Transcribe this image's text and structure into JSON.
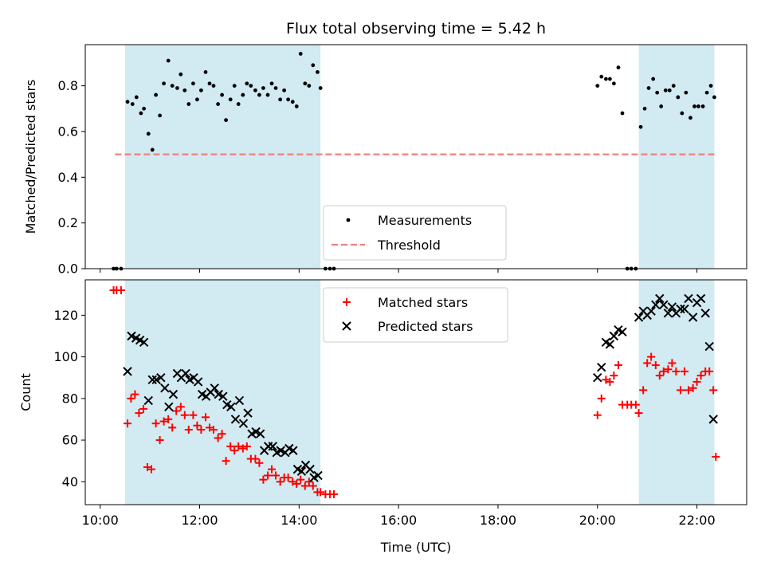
{
  "chart_data": [
    {
      "type": "scatter",
      "title": "Flux total observing time = 5.42 h",
      "xlabel": "",
      "ylabel": "Matched/Predicted stars",
      "xlim_hours": [
        9.7,
        23.0
      ],
      "ylim": [
        0,
        0.98
      ],
      "yticks": [
        0.0,
        0.2,
        0.4,
        0.6,
        0.8
      ],
      "ytick_labels": [
        "0.0",
        "0.2",
        "0.4",
        "0.6",
        "0.8"
      ],
      "grid": false,
      "legend_position": "lower-center",
      "shaded_intervals_hours": [
        [
          10.5,
          14.43
        ],
        [
          20.83,
          22.35
        ]
      ],
      "shaded_color": "#add8e6",
      "threshold": {
        "name": "Threshold",
        "value": 0.5,
        "x_range_hours": [
          10.3,
          22.35
        ],
        "color": "#f08080"
      },
      "series": [
        {
          "name": "Measurements",
          "color": "#000000",
          "marker": "dot",
          "points": [
            [
              10.27,
              0.0
            ],
            [
              10.33,
              0.0
            ],
            [
              10.42,
              0.0
            ],
            [
              10.55,
              0.73
            ],
            [
              10.65,
              0.72
            ],
            [
              10.73,
              0.75
            ],
            [
              10.82,
              0.68
            ],
            [
              10.88,
              0.7
            ],
            [
              10.97,
              0.59
            ],
            [
              11.05,
              0.52
            ],
            [
              11.12,
              0.76
            ],
            [
              11.2,
              0.67
            ],
            [
              11.28,
              0.81
            ],
            [
              11.37,
              0.91
            ],
            [
              11.45,
              0.8
            ],
            [
              11.55,
              0.79
            ],
            [
              11.62,
              0.85
            ],
            [
              11.7,
              0.78
            ],
            [
              11.78,
              0.72
            ],
            [
              11.87,
              0.81
            ],
            [
              11.95,
              0.74
            ],
            [
              12.03,
              0.78
            ],
            [
              12.12,
              0.86
            ],
            [
              12.2,
              0.81
            ],
            [
              12.28,
              0.8
            ],
            [
              12.37,
              0.72
            ],
            [
              12.45,
              0.76
            ],
            [
              12.53,
              0.65
            ],
            [
              12.62,
              0.74
            ],
            [
              12.7,
              0.8
            ],
            [
              12.78,
              0.72
            ],
            [
              12.87,
              0.76
            ],
            [
              12.95,
              0.81
            ],
            [
              13.03,
              0.8
            ],
            [
              13.12,
              0.78
            ],
            [
              13.2,
              0.76
            ],
            [
              13.28,
              0.79
            ],
            [
              13.37,
              0.76
            ],
            [
              13.45,
              0.81
            ],
            [
              13.53,
              0.79
            ],
            [
              13.62,
              0.74
            ],
            [
              13.7,
              0.78
            ],
            [
              13.78,
              0.74
            ],
            [
              13.87,
              0.73
            ],
            [
              13.95,
              0.71
            ],
            [
              14.03,
              0.94
            ],
            [
              14.12,
              0.81
            ],
            [
              14.2,
              0.8
            ],
            [
              14.28,
              0.89
            ],
            [
              14.37,
              0.86
            ],
            [
              14.43,
              0.79
            ],
            [
              14.53,
              0.0
            ],
            [
              14.62,
              0.0
            ],
            [
              14.7,
              0.0
            ],
            [
              20.0,
              0.8
            ],
            [
              20.08,
              0.84
            ],
            [
              20.17,
              0.83
            ],
            [
              20.25,
              0.83
            ],
            [
              20.33,
              0.81
            ],
            [
              20.42,
              0.88
            ],
            [
              20.5,
              0.68
            ],
            [
              20.6,
              0.0
            ],
            [
              20.68,
              0.0
            ],
            [
              20.77,
              0.0
            ],
            [
              20.87,
              0.62
            ],
            [
              20.95,
              0.7
            ],
            [
              21.03,
              0.79
            ],
            [
              21.12,
              0.83
            ],
            [
              21.2,
              0.77
            ],
            [
              21.28,
              0.71
            ],
            [
              21.37,
              0.78
            ],
            [
              21.45,
              0.78
            ],
            [
              21.53,
              0.8
            ],
            [
              21.62,
              0.75
            ],
            [
              21.7,
              0.68
            ],
            [
              21.78,
              0.77
            ],
            [
              21.87,
              0.66
            ],
            [
              21.95,
              0.71
            ],
            [
              22.03,
              0.71
            ],
            [
              22.12,
              0.71
            ],
            [
              22.2,
              0.77
            ],
            [
              22.28,
              0.8
            ],
            [
              22.35,
              0.75
            ]
          ]
        }
      ]
    },
    {
      "type": "scatter",
      "title": "",
      "xlabel": "Time (UTC)",
      "ylabel": "Count",
      "xlim_hours": [
        9.7,
        23.0
      ],
      "ylim": [
        29,
        137
      ],
      "yticks": [
        40,
        60,
        80,
        100,
        120
      ],
      "xticks_hours": [
        10,
        12,
        14,
        16,
        18,
        20,
        22
      ],
      "xtick_labels": [
        "10:00",
        "12:00",
        "14:00",
        "16:00",
        "18:00",
        "20:00",
        "22:00"
      ],
      "grid": false,
      "legend_position": "upper-center",
      "shaded_intervals_hours": [
        [
          10.5,
          14.43
        ],
        [
          20.83,
          22.35
        ]
      ],
      "shaded_color": "#add8e6",
      "series": [
        {
          "name": "Matched stars",
          "color": "#ff0000",
          "marker": "plus",
          "points": [
            [
              10.27,
              132
            ],
            [
              10.33,
              132
            ],
            [
              10.42,
              132
            ],
            [
              10.55,
              68
            ],
            [
              10.62,
              80
            ],
            [
              10.7,
              82
            ],
            [
              10.78,
              73
            ],
            [
              10.87,
              75
            ],
            [
              10.95,
              47
            ],
            [
              11.03,
              46
            ],
            [
              11.12,
              68
            ],
            [
              11.2,
              60
            ],
            [
              11.28,
              69
            ],
            [
              11.37,
              70
            ],
            [
              11.45,
              66
            ],
            [
              11.53,
              74
            ],
            [
              11.62,
              76
            ],
            [
              11.7,
              72
            ],
            [
              11.78,
              65
            ],
            [
              11.87,
              72
            ],
            [
              11.95,
              67
            ],
            [
              12.03,
              65
            ],
            [
              12.12,
              71
            ],
            [
              12.2,
              66
            ],
            [
              12.28,
              65
            ],
            [
              12.37,
              61
            ],
            [
              12.45,
              63
            ],
            [
              12.53,
              50
            ],
            [
              12.62,
              57
            ],
            [
              12.7,
              55
            ],
            [
              12.78,
              57
            ],
            [
              12.87,
              56
            ],
            [
              12.95,
              57
            ],
            [
              13.03,
              51
            ],
            [
              13.12,
              51
            ],
            [
              13.2,
              49
            ],
            [
              13.28,
              41
            ],
            [
              13.37,
              43
            ],
            [
              13.45,
              46
            ],
            [
              13.53,
              43
            ],
            [
              13.62,
              40
            ],
            [
              13.7,
              42
            ],
            [
              13.78,
              42
            ],
            [
              13.87,
              40
            ],
            [
              13.95,
              39
            ],
            [
              14.03,
              41
            ],
            [
              14.12,
              38
            ],
            [
              14.2,
              40
            ],
            [
              14.28,
              38
            ],
            [
              14.37,
              35
            ],
            [
              14.43,
              35
            ],
            [
              14.53,
              34
            ],
            [
              14.62,
              34
            ],
            [
              14.7,
              34
            ],
            [
              20.0,
              72
            ],
            [
              20.08,
              80
            ],
            [
              20.17,
              89
            ],
            [
              20.25,
              88
            ],
            [
              20.33,
              91
            ],
            [
              20.42,
              96
            ],
            [
              20.5,
              77
            ],
            [
              20.6,
              77
            ],
            [
              20.68,
              77
            ],
            [
              20.77,
              77
            ],
            [
              20.83,
              73
            ],
            [
              20.92,
              84
            ],
            [
              21.0,
              97
            ],
            [
              21.08,
              100
            ],
            [
              21.17,
              96
            ],
            [
              21.25,
              91
            ],
            [
              21.33,
              93
            ],
            [
              21.42,
              94
            ],
            [
              21.5,
              97
            ],
            [
              21.58,
              93
            ],
            [
              21.67,
              84
            ],
            [
              21.75,
              93
            ],
            [
              21.83,
              84
            ],
            [
              21.92,
              85
            ],
            [
              22.0,
              88
            ],
            [
              22.08,
              91
            ],
            [
              22.17,
              93
            ],
            [
              22.25,
              93
            ],
            [
              22.33,
              84
            ],
            [
              22.38,
              52
            ]
          ]
        },
        {
          "name": "Predicted stars",
          "color": "#000000",
          "marker": "x",
          "points": [
            [
              10.55,
              93
            ],
            [
              10.63,
              110
            ],
            [
              10.72,
              109
            ],
            [
              10.8,
              108
            ],
            [
              10.88,
              107
            ],
            [
              10.97,
              79
            ],
            [
              11.05,
              89
            ],
            [
              11.13,
              89
            ],
            [
              11.22,
              90
            ],
            [
              11.3,
              85
            ],
            [
              11.38,
              76
            ],
            [
              11.47,
              82
            ],
            [
              11.55,
              92
            ],
            [
              11.63,
              90
            ],
            [
              11.72,
              92
            ],
            [
              11.8,
              89
            ],
            [
              11.88,
              90
            ],
            [
              11.97,
              88
            ],
            [
              12.05,
              82
            ],
            [
              12.13,
              81
            ],
            [
              12.22,
              83
            ],
            [
              12.3,
              85
            ],
            [
              12.38,
              82
            ],
            [
              12.47,
              81
            ],
            [
              12.55,
              77
            ],
            [
              12.63,
              76
            ],
            [
              12.72,
              70
            ],
            [
              12.8,
              79
            ],
            [
              12.88,
              68
            ],
            [
              12.97,
              73
            ],
            [
              13.05,
              63
            ],
            [
              13.13,
              64
            ],
            [
              13.22,
              63
            ],
            [
              13.3,
              55
            ],
            [
              13.38,
              57
            ],
            [
              13.47,
              57
            ],
            [
              13.55,
              54
            ],
            [
              13.63,
              55
            ],
            [
              13.72,
              54
            ],
            [
              13.8,
              56
            ],
            [
              13.88,
              55
            ],
            [
              13.97,
              46
            ],
            [
              14.05,
              45
            ],
            [
              14.13,
              48
            ],
            [
              14.22,
              46
            ],
            [
              14.3,
              42
            ],
            [
              14.38,
              43
            ],
            [
              20.0,
              90
            ],
            [
              20.08,
              95
            ],
            [
              20.17,
              107
            ],
            [
              20.25,
              106
            ],
            [
              20.33,
              110
            ],
            [
              20.42,
              113
            ],
            [
              20.5,
              112
            ],
            [
              20.83,
              119
            ],
            [
              20.92,
              122
            ],
            [
              21.0,
              120
            ],
            [
              21.08,
              122
            ],
            [
              21.17,
              125
            ],
            [
              21.25,
              128
            ],
            [
              21.33,
              125
            ],
            [
              21.42,
              121
            ],
            [
              21.5,
              124
            ],
            [
              21.58,
              121
            ],
            [
              21.67,
              123
            ],
            [
              21.75,
              123
            ],
            [
              21.83,
              128
            ],
            [
              21.92,
              119
            ],
            [
              22.0,
              126
            ],
            [
              22.08,
              128
            ],
            [
              22.17,
              121
            ],
            [
              22.25,
              105
            ],
            [
              22.33,
              70
            ]
          ]
        }
      ]
    }
  ]
}
